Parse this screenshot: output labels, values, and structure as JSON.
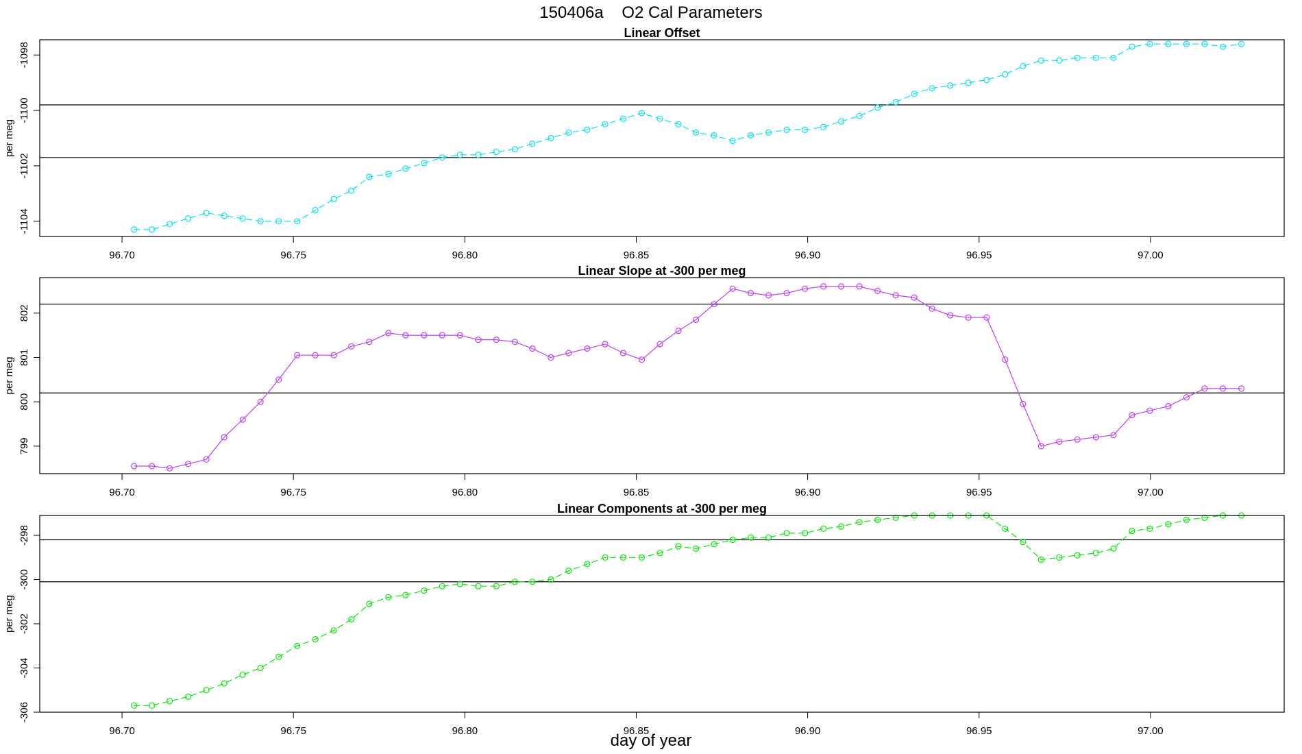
{
  "figure": {
    "title": "150406a    O2 Cal Parameters",
    "xlabel": "day of year"
  },
  "chart_data": [
    {
      "type": "line",
      "title": "Linear Offset",
      "ylabel": "per meg",
      "color": "#00e5ee",
      "dashed": true,
      "xlim": [
        96.676,
        97.039
      ],
      "ylim": [
        -1104.55,
        -1097.45
      ],
      "xticks": [
        "96.70",
        "96.75",
        "96.80",
        "96.85",
        "96.90",
        "96.95",
        "97.00"
      ],
      "yticks": [
        "-1098",
        "-1100",
        "-1102",
        "-1104"
      ],
      "hlines": [
        -1099.8,
        -1101.7
      ],
      "x": [
        96.7035,
        96.7087,
        96.7139,
        96.7193,
        96.7246,
        96.7298,
        96.7352,
        96.7404,
        96.7457,
        96.7511,
        96.7564,
        96.7618,
        96.7669,
        96.7721,
        96.7777,
        96.7827,
        96.7881,
        96.7934,
        96.7986,
        96.8039,
        96.8092,
        96.8146,
        96.8197,
        96.8251,
        96.8303,
        96.8357,
        96.8409,
        96.8462,
        96.8516,
        96.8569,
        96.8623,
        96.8674,
        96.8727,
        96.8781,
        96.8834,
        96.8886,
        96.8939,
        96.8992,
        96.9046,
        96.9098,
        96.9151,
        96.9204,
        96.9257,
        96.9311,
        96.9363,
        96.9416,
        96.9469,
        96.9522,
        96.9576,
        96.9628,
        96.9681,
        96.9734,
        96.9787,
        96.9841,
        96.9892,
        96.9946,
        96.9998,
        97.0052,
        97.0105,
        97.0158,
        97.0211,
        97.0265
      ],
      "y": [
        -1104.3,
        -1104.3,
        -1104.1,
        -1103.9,
        -1103.7,
        -1103.8,
        -1103.9,
        -1104.0,
        -1104.0,
        -1104.0,
        -1103.6,
        -1103.2,
        -1102.9,
        -1102.4,
        -1102.3,
        -1102.1,
        -1101.9,
        -1101.7,
        -1101.6,
        -1101.6,
        -1101.5,
        -1101.4,
        -1101.2,
        -1101.0,
        -1100.8,
        -1100.7,
        -1100.5,
        -1100.3,
        -1100.1,
        -1100.3,
        -1100.5,
        -1100.8,
        -1100.9,
        -1101.1,
        -1100.9,
        -1100.8,
        -1100.7,
        -1100.7,
        -1100.6,
        -1100.4,
        -1100.2,
        -1099.9,
        -1099.7,
        -1099.4,
        -1099.2,
        -1099.1,
        -1099.0,
        -1098.9,
        -1098.7,
        -1098.4,
        -1098.2,
        -1098.2,
        -1098.1,
        -1098.1,
        -1098.1,
        -1097.7,
        -1097.6,
        -1097.6,
        -1097.6,
        -1097.6,
        -1097.7,
        -1097.6
      ]
    },
    {
      "type": "line",
      "title": "Linear Slope at -300 per meg",
      "ylabel": "per meg",
      "color": "#bf3eff",
      "dashed": false,
      "xlim": [
        96.676,
        97.039
      ],
      "ylim": [
        798.38,
        802.8
      ],
      "xticks": [
        "96.70",
        "96.75",
        "96.80",
        "96.85",
        "96.90",
        "96.95",
        "97.00"
      ],
      "yticks": [
        "802",
        "801",
        "800",
        "799"
      ],
      "hlines": [
        802.2,
        800.2
      ],
      "x": [
        96.7035,
        96.7087,
        96.7139,
        96.7193,
        96.7246,
        96.7298,
        96.7352,
        96.7404,
        96.7457,
        96.7511,
        96.7564,
        96.7618,
        96.7669,
        96.7721,
        96.7777,
        96.7827,
        96.7881,
        96.7934,
        96.7986,
        96.8039,
        96.8092,
        96.8146,
        96.8197,
        96.8251,
        96.8303,
        96.8357,
        96.8409,
        96.8462,
        96.8516,
        96.8569,
        96.8623,
        96.8674,
        96.8727,
        96.8781,
        96.8834,
        96.8886,
        96.8939,
        96.8992,
        96.9046,
        96.9098,
        96.9151,
        96.9204,
        96.9257,
        96.9311,
        96.9363,
        96.9416,
        96.9469,
        96.9522,
        96.9576,
        96.9628,
        96.9681,
        96.9734,
        96.9787,
        96.9841,
        96.9892,
        96.9946,
        96.9998,
        97.0052,
        97.0105,
        97.0158,
        97.0211,
        97.0265
      ],
      "y": [
        798.55,
        798.55,
        798.5,
        798.6,
        798.7,
        799.2,
        799.6,
        800.0,
        800.5,
        801.05,
        801.05,
        801.05,
        801.25,
        801.35,
        801.55,
        801.5,
        801.5,
        801.5,
        801.5,
        801.4,
        801.4,
        801.35,
        801.2,
        801.0,
        801.1,
        801.2,
        801.3,
        801.1,
        800.95,
        801.3,
        801.6,
        801.85,
        802.2,
        802.55,
        802.45,
        802.4,
        802.45,
        802.55,
        802.6,
        802.6,
        802.6,
        802.5,
        802.4,
        802.35,
        802.1,
        801.95,
        801.9,
        801.9,
        800.95,
        799.95,
        799.0,
        799.1,
        799.15,
        799.2,
        799.25,
        799.7,
        799.8,
        799.9,
        800.1,
        800.3,
        800.3,
        800.3
      ]
    },
    {
      "type": "line",
      "title": "Linear Components at -300 per meg",
      "ylabel": "per meg",
      "color": "#00ee00",
      "dashed": true,
      "xlim": [
        96.676,
        97.039
      ],
      "ylim": [
        -306.0,
        -297.1
      ],
      "xticks": [
        "96.70",
        "96.75",
        "96.80",
        "96.85",
        "96.90",
        "96.95",
        "97.00"
      ],
      "yticks": [
        "-298",
        "-300",
        "-302",
        "-304",
        "-306"
      ],
      "hlines": [
        -298.2,
        -300.1
      ],
      "x": [
        96.7035,
        96.7087,
        96.7139,
        96.7193,
        96.7246,
        96.7298,
        96.7352,
        96.7404,
        96.7457,
        96.7511,
        96.7564,
        96.7618,
        96.7669,
        96.7721,
        96.7777,
        96.7827,
        96.7881,
        96.7934,
        96.7986,
        96.8039,
        96.8092,
        96.8146,
        96.8197,
        96.8251,
        96.8303,
        96.8357,
        96.8409,
        96.8462,
        96.8516,
        96.8569,
        96.8623,
        96.8674,
        96.8727,
        96.8781,
        96.8834,
        96.8886,
        96.8939,
        96.8992,
        96.9046,
        96.9098,
        96.9151,
        96.9204,
        96.9257,
        96.9311,
        96.9363,
        96.9416,
        96.9469,
        96.9522,
        96.9576,
        96.9628,
        96.9681,
        96.9734,
        96.9787,
        96.9841,
        96.9892,
        96.9946,
        96.9998,
        97.0052,
        97.0105,
        97.0158,
        97.0211,
        97.0265
      ],
      "y": [
        -305.7,
        -305.7,
        -305.5,
        -305.3,
        -305.0,
        -304.7,
        -304.3,
        -304.0,
        -303.5,
        -303.0,
        -302.7,
        -302.3,
        -301.8,
        -301.1,
        -300.8,
        -300.7,
        -300.5,
        -300.3,
        -300.2,
        -300.3,
        -300.3,
        -300.1,
        -300.1,
        -300.0,
        -299.6,
        -299.3,
        -299.0,
        -299.0,
        -299.0,
        -298.8,
        -298.5,
        -298.6,
        -298.4,
        -298.2,
        -298.1,
        -298.1,
        -297.9,
        -297.9,
        -297.7,
        -297.6,
        -297.4,
        -297.3,
        -297.2,
        -297.1,
        -297.1,
        -297.1,
        -297.1,
        -297.1,
        -297.7,
        -298.3,
        -299.1,
        -299.0,
        -298.9,
        -298.8,
        -298.6,
        -297.8,
        -297.7,
        -297.5,
        -297.3,
        -297.2,
        -297.1,
        -297.1
      ]
    }
  ]
}
